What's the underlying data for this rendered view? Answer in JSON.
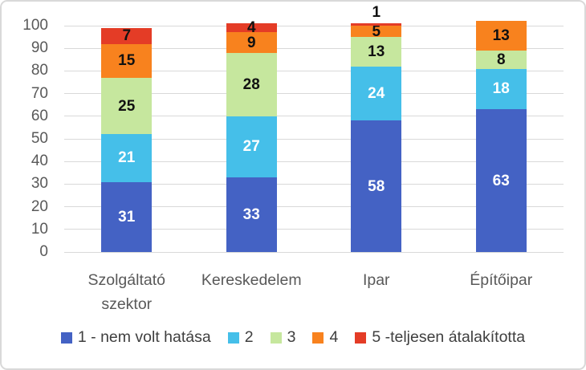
{
  "figure": {
    "background": "#FFFFFF",
    "border_color": "#D9D9D9"
  },
  "chart_data": {
    "type": "bar",
    "stacked": true,
    "title": "",
    "xlabel": "",
    "ylabel": "",
    "categories": [
      "Szolgáltató szektor",
      "Kereskedelem",
      "Ipar",
      "Építőipar"
    ],
    "series": [
      {
        "name": "1 - nem volt hatása",
        "color": "#4462C4",
        "label_color": "#FFFFFF",
        "values": [
          31,
          33,
          58,
          63
        ]
      },
      {
        "name": "2",
        "color": "#45BFE9",
        "label_color": "#FFFFFF",
        "values": [
          21,
          27,
          24,
          18
        ]
      },
      {
        "name": "3",
        "color": "#C6E79E",
        "label_color": "#111111",
        "values": [
          25,
          28,
          13,
          8
        ]
      },
      {
        "name": "4",
        "color": "#F8821E",
        "label_color": "#111111",
        "values": [
          15,
          9,
          5,
          13
        ]
      },
      {
        "name": "5 -teljesen átalakította",
        "color": "#E43C26",
        "label_color": "#111111",
        "values": [
          7,
          4,
          1,
          0
        ]
      }
    ],
    "y_ticks": [
      100,
      90,
      80,
      70,
      60,
      50,
      40,
      30,
      20,
      10,
      0
    ],
    "ylim": [
      0,
      100
    ],
    "grid": true,
    "gridline_color": "#D9D9D9",
    "axis_text_color": "#595959",
    "legend_position": "bottom",
    "legend_text_color": "#3F3F3F",
    "data_labels": true
  }
}
